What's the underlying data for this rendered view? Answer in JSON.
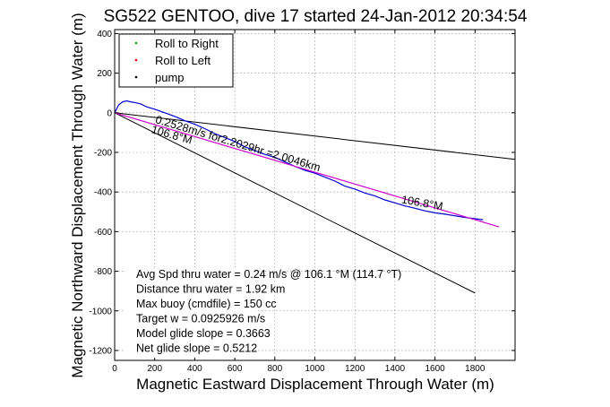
{
  "chart_data": {
    "type": "line",
    "title": "SG522 GENTOO, dive 17 started 24-Jan-2012 20:34:54",
    "xlabel": "Magnetic Eastward Displacement Through Water (m)",
    "ylabel": "Magnetic Northward Displacement Through Water (m)",
    "xlim": [
      0,
      2000
    ],
    "ylim": [
      -1250,
      420
    ],
    "xticks": [
      0,
      200,
      400,
      600,
      800,
      1000,
      1200,
      1400,
      1600,
      1800
    ],
    "yticks": [
      400,
      200,
      0,
      -200,
      -400,
      -600,
      -800,
      -1000,
      -1200
    ],
    "grid": true,
    "legend_position": "top-left",
    "legend": [
      {
        "label": "Roll to Right",
        "color": "#00a000",
        "marker": "dot"
      },
      {
        "label": "Roll to Left",
        "color": "#ff0000",
        "marker": "dot"
      },
      {
        "label": "pump",
        "color": "#000000",
        "marker": "dot"
      }
    ],
    "series": [
      {
        "color": "#0000cc",
        "x": [
          0,
          20,
          40,
          60,
          80,
          100,
          130,
          160,
          200,
          250,
          300,
          350,
          400,
          450,
          500,
          550,
          600,
          650,
          700,
          750,
          800,
          850,
          900,
          950,
          1000,
          1050,
          1100,
          1150,
          1200,
          1250,
          1300,
          1350,
          1400,
          1450,
          1500,
          1550,
          1600,
          1650,
          1700,
          1750,
          1800,
          1840
        ],
        "y": [
          0,
          40,
          55,
          60,
          55,
          52,
          45,
          30,
          18,
          0,
          -18,
          -40,
          -58,
          -80,
          -105,
          -125,
          -145,
          -172,
          -190,
          -210,
          -225,
          -248,
          -270,
          -290,
          -305,
          -325,
          -345,
          -370,
          -385,
          -405,
          -420,
          -440,
          -455,
          -470,
          -482,
          -495,
          -505,
          -512,
          -520,
          -528,
          -535,
          -540
        ]
      },
      {
        "color": "#cc00cc",
        "x": [
          0,
          200,
          400,
          600,
          800,
          1000,
          1200,
          1400,
          1600,
          1800,
          1920
        ],
        "y": [
          0,
          -60,
          -120,
          -180,
          -240,
          -300,
          -360,
          -420,
          -480,
          -540,
          -576
        ]
      }
    ],
    "reference_lines": [
      {
        "x": [
          0,
          2000
        ],
        "y": [
          0,
          -235
        ],
        "color": "#000000"
      },
      {
        "x": [
          0,
          1800
        ],
        "y": [
          0,
          -910
        ],
        "color": "#000000"
      }
    ],
    "annotations": [
      {
        "text": "0.2528m/s for2.2029hr =2.0046km",
        "x": 200,
        "y": -50,
        "angle": 16.5
      },
      {
        "text": "106.8°M",
        "x": 180,
        "y": -100,
        "angle": 16
      },
      {
        "text": "106.8°M",
        "x": 1430,
        "y": -455,
        "angle": 10
      }
    ],
    "stats": [
      "Avg Spd thru water =  0.24 m/s @ 106.1    °M (114.7 °T)",
      "Distance thru water =  1.92 km",
      "Max buoy (cmdfile) = 150 cc",
      "Target w = 0.0925926 m/s",
      "Model glide slope = 0.3663",
      "Net glide slope = 0.5212"
    ]
  }
}
